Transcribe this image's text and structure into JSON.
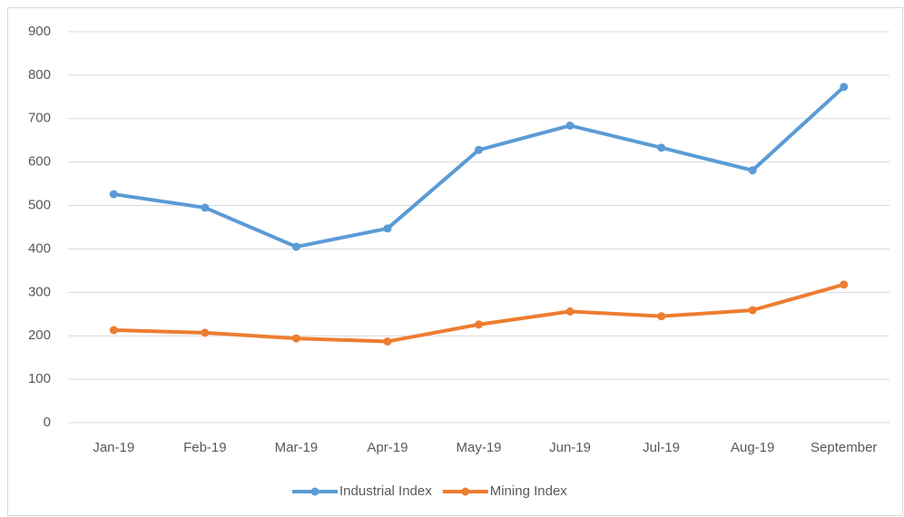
{
  "chart_data": {
    "type": "line",
    "categories": [
      "Jan-19",
      "Feb-19",
      "Mar-19",
      "Apr-19",
      "May-19",
      "Jun-19",
      "Jul-19",
      "Aug-19",
      "September"
    ],
    "series": [
      {
        "name": "Industrial Index",
        "color": "#5b9bd5",
        "values": [
          526,
          495,
          405,
          447,
          628,
          684,
          633,
          581,
          773
        ]
      },
      {
        "name": "Mining Index",
        "color": "#ed7d31",
        "values": [
          213,
          207,
          194,
          187,
          226,
          256,
          245,
          259,
          318
        ]
      }
    ],
    "ylim": [
      0,
      900
    ],
    "yticks": [
      0,
      100,
      200,
      300,
      400,
      500,
      600,
      700,
      800,
      900
    ],
    "grid": true,
    "legend": "bottom"
  }
}
